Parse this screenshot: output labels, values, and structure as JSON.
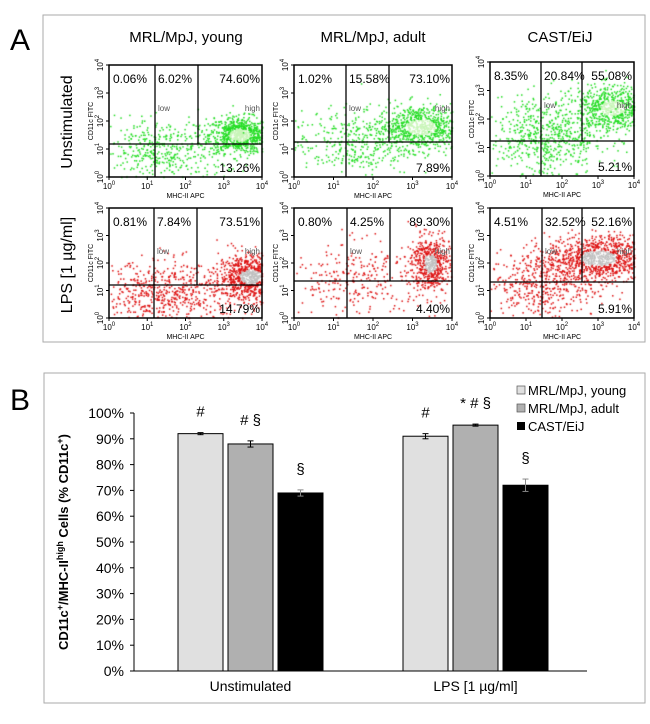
{
  "panel_a": {
    "label": "A",
    "columns": [
      "MRL/MpJ, young",
      "MRL/MpJ, adult",
      "CAST/EiJ"
    ],
    "rows": [
      "Unstimulated",
      "LPS [1 µg/ml]"
    ],
    "x_axis_label": "MHC-II APC",
    "y_axis_label": "CD11c FITC",
    "tick_base": "10",
    "tick_exponents": [
      "0",
      "1",
      "2",
      "3",
      "4"
    ],
    "gate_labels": {
      "low": "low",
      "high": "high"
    },
    "colors": {
      "unstimulated": "#22dd22",
      "lps": "#dd1111"
    },
    "plots": [
      [
        {
          "q": [
            "0.06%",
            "6.02%",
            "74.60%",
            "13.26%"
          ]
        },
        {
          "q": [
            "1.02%",
            "15.58%",
            "73.10%",
            "7.89%"
          ]
        },
        {
          "q": [
            "8.35%",
            "20.84%",
            "55.08%",
            "5.21%"
          ]
        }
      ],
      [
        {
          "q": [
            "0.81%",
            "7.84%",
            "73.51%",
            "14.79%"
          ]
        },
        {
          "q": [
            "0.80%",
            "4.25%",
            "89.30%",
            "4.40%"
          ]
        },
        {
          "q": [
            "4.51%",
            "32.52%",
            "52.16%",
            "5.91%"
          ]
        }
      ]
    ]
  },
  "chart_data": {
    "type": "bar",
    "panel_label": "B",
    "categories": [
      "Unstimulated",
      "LPS [1 µg/ml]"
    ],
    "series": [
      {
        "name": "MRL/MpJ, young",
        "color": "#e0e0e0",
        "values": [
          92,
          91
        ],
        "errors": [
          0.4,
          1.0
        ],
        "annotations": [
          "#",
          "#"
        ]
      },
      {
        "name": "MRL/MpJ, adult",
        "color": "#b0b0b0",
        "values": [
          88,
          95.3
        ],
        "errors": [
          1.2,
          0.4
        ],
        "annotations": [
          "# §",
          "* # §"
        ]
      },
      {
        "name": "CAST/EiJ",
        "color": "#000000",
        "values": [
          69,
          72
        ],
        "errors": [
          1.2,
          2.4
        ],
        "annotations": [
          "§",
          "§"
        ]
      }
    ],
    "ylabel_parts": {
      "a": "CD11c",
      "sup1": "+",
      "b": "/MHC-II",
      "sup2": "high",
      "c": " Cells (% CD11c",
      "sup3": "+",
      "d": ")"
    },
    "ylim": [
      0,
      100
    ],
    "yticks": [
      "0%",
      "10%",
      "20%",
      "30%",
      "40%",
      "50%",
      "60%",
      "70%",
      "80%",
      "90%",
      "100%"
    ],
    "grid": false,
    "legend_position": "top-right"
  }
}
